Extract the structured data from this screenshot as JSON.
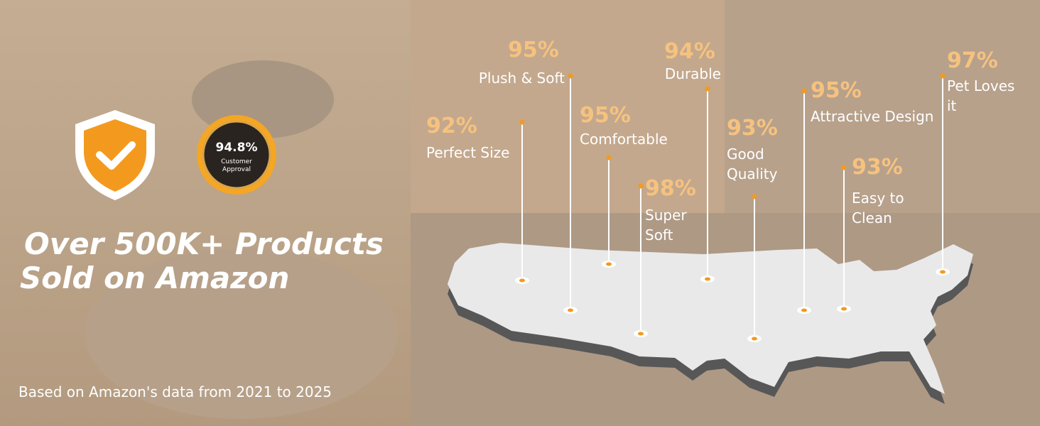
{
  "headline": [
    "Over 500K+ Products",
    "Sold on Amazon"
  ],
  "badge": {
    "percent": "94.8%",
    "caption": [
      "Customer",
      "Approval"
    ]
  },
  "footnote": "Based on Amazon's data from 2021 to 2025",
  "stats": [
    {
      "percent": "92%",
      "label": [
        "Perfect Size"
      ]
    },
    {
      "percent": "95%",
      "label": [
        "Plush & Soft"
      ]
    },
    {
      "percent": "95%",
      "label": [
        "Comfortable"
      ]
    },
    {
      "percent": "98%",
      "label": [
        "Super",
        "Soft"
      ]
    },
    {
      "percent": "94%",
      "label": [
        "Durable"
      ]
    },
    {
      "percent": "93%",
      "label": [
        "Good",
        "Quality"
      ]
    },
    {
      "percent": "95%",
      "label": [
        "Attractive Design"
      ]
    },
    {
      "percent": "93%",
      "label": [
        "Easy to",
        "Clean"
      ]
    },
    {
      "percent": "97%",
      "label": [
        "Pet Loves",
        "it"
      ]
    }
  ]
}
